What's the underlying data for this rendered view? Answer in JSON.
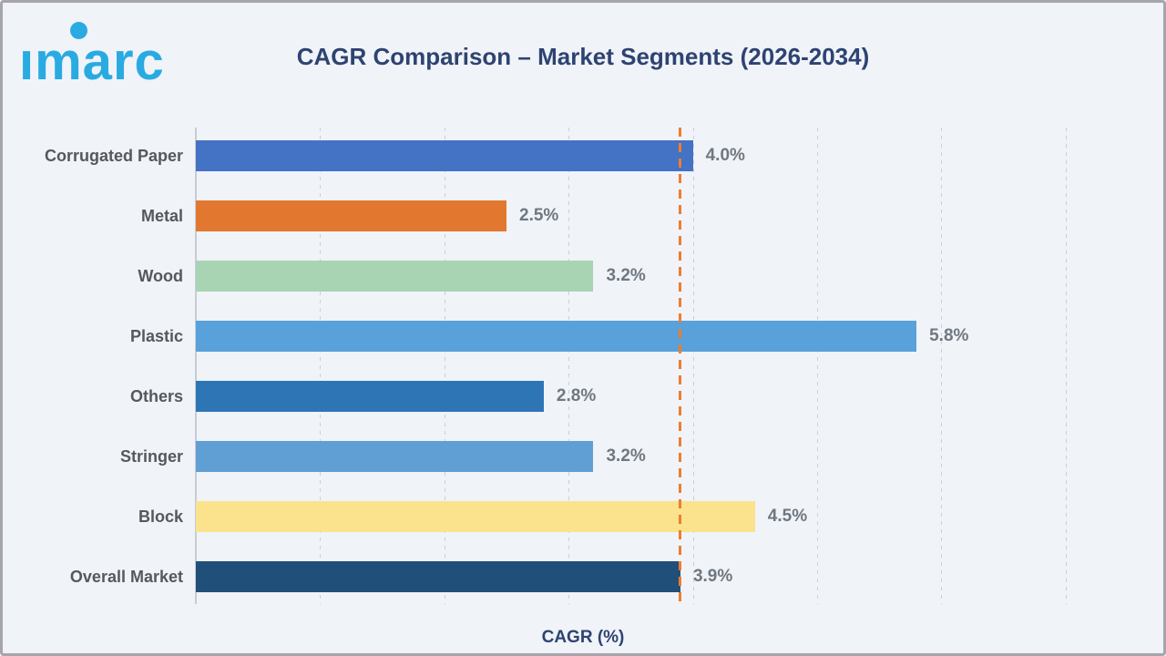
{
  "logo": {
    "text": "imarc",
    "color": "#29abe2"
  },
  "header": {
    "title": "CAGR Comparison – Market Segments (2026-2034)"
  },
  "chart_data": {
    "type": "bar",
    "orientation": "horizontal",
    "title": "CAGR Comparison – Market Segments (2026-2034)",
    "xlabel": "CAGR (%)",
    "ylabel": "",
    "xlim": [
      0,
      7.1
    ],
    "grid": true,
    "gridlines_at": [
      1,
      2,
      3,
      4,
      5,
      6,
      7
    ],
    "categories": [
      "Corrugated Paper",
      "Metal",
      "Wood",
      "Plastic",
      "Others",
      "Stringer",
      "Block",
      "Overall Market"
    ],
    "values": [
      4.0,
      2.5,
      3.2,
      5.8,
      2.8,
      3.2,
      4.5,
      3.9
    ],
    "value_labels": [
      "4.0%",
      "2.5%",
      "3.2%",
      "5.8%",
      "2.8%",
      "3.2%",
      "4.5%",
      "3.9%"
    ],
    "bar_colors": [
      "#4472c4",
      "#e2782f",
      "#a8d4b4",
      "#58a1da",
      "#2e75b6",
      "#5f9fd4",
      "#fbe28d",
      "#20507a"
    ],
    "reference_line": {
      "value": 3.9,
      "color": "#ed7d31",
      "style": "dashed"
    }
  },
  "colors": {
    "background": "#f0f3f8",
    "title_text": "#2e4371",
    "category_label": "#55585c",
    "value_label": "#6f7780",
    "gridline": "#cbd0d8",
    "axis_line": "#c7ccd3",
    "frame_border": "#a7a5ab"
  }
}
